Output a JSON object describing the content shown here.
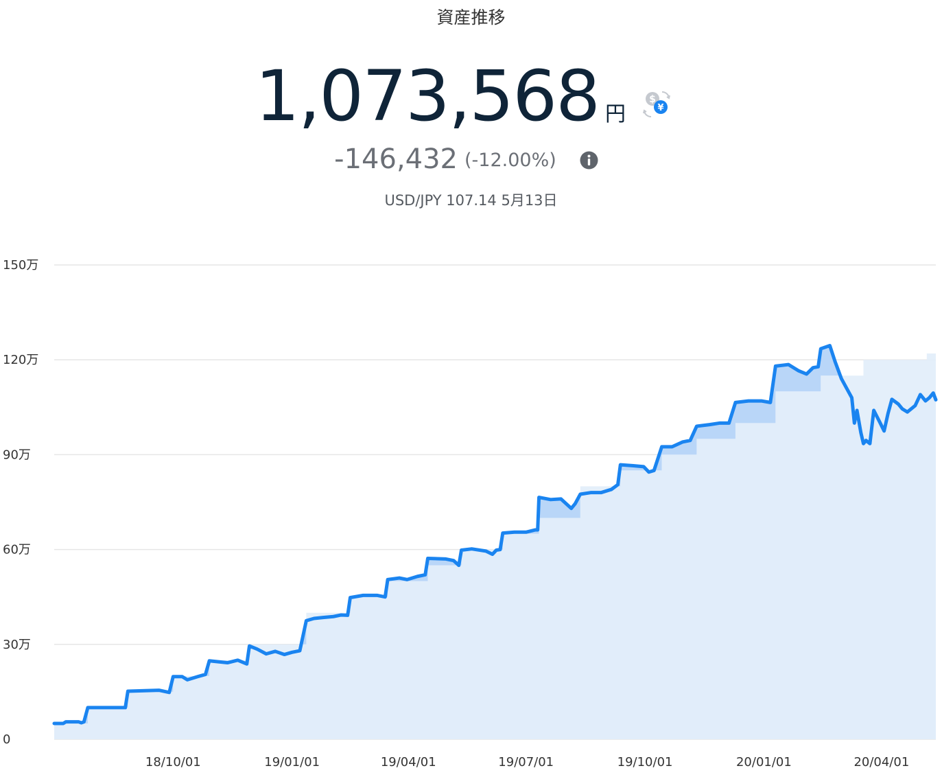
{
  "header": {
    "title": "資産推移",
    "total_value": "1,073,568",
    "unit": "円",
    "change": "-146,432",
    "change_pct": "(-12.00%)",
    "fx_rate": "USD/JPY 107.14 5月13日"
  },
  "icons": {
    "currency_switch": "currency-switch-icon",
    "info": "info-icon"
  },
  "colors": {
    "line": "#1a84f0",
    "area": "#e1edfa",
    "cost_area": "#b9d6f8",
    "grid": "#e6e6e6"
  },
  "chart_data": {
    "type": "area",
    "title": "",
    "xlabel": "",
    "ylabel": "",
    "ylim": [
      0,
      1500000
    ],
    "y_ticks": [
      {
        "value": 0,
        "label": "0"
      },
      {
        "value": 300000,
        "label": "30万"
      },
      {
        "value": 600000,
        "label": "60万"
      },
      {
        "value": 900000,
        "label": "90万"
      },
      {
        "value": 1200000,
        "label": "120万"
      },
      {
        "value": 1500000,
        "label": "150万"
      }
    ],
    "xlim": [
      "2018-07-01",
      "2020-05-13"
    ],
    "x_ticks": [
      {
        "date": "2018-10-01",
        "label": "18/10/01"
      },
      {
        "date": "2019-01-01",
        "label": "19/01/01"
      },
      {
        "date": "2019-04-01",
        "label": "19/04/01"
      },
      {
        "date": "2019-07-01",
        "label": "19/07/01"
      },
      {
        "date": "2019-10-01",
        "label": "19/10/01"
      },
      {
        "date": "2020-01-01",
        "label": "20/01/01"
      },
      {
        "date": "2020-04-01",
        "label": "20/04/01"
      }
    ],
    "grid": true,
    "series": [
      {
        "points": [
          [
            "2018-07-01",
            50000
          ],
          [
            "2018-07-08",
            50000
          ],
          [
            "2018-07-10",
            55000
          ],
          [
            "2018-07-20",
            55000
          ],
          [
            "2018-07-22",
            52000
          ],
          [
            "2018-07-24",
            55000
          ],
          [
            "2018-07-27",
            100000
          ],
          [
            "2018-08-25",
            100000
          ],
          [
            "2018-08-27",
            152000
          ],
          [
            "2018-09-20",
            155000
          ],
          [
            "2018-09-28",
            148000
          ],
          [
            "2018-10-01",
            198000
          ],
          [
            "2018-10-08",
            198000
          ],
          [
            "2018-10-12",
            188000
          ],
          [
            "2018-10-20",
            198000
          ],
          [
            "2018-10-26",
            205000
          ],
          [
            "2018-10-29",
            248000
          ],
          [
            "2018-11-05",
            245000
          ],
          [
            "2018-11-12",
            242000
          ],
          [
            "2018-11-20",
            250000
          ],
          [
            "2018-11-27",
            238000
          ],
          [
            "2018-11-29",
            295000
          ],
          [
            "2018-12-05",
            285000
          ],
          [
            "2018-12-12",
            270000
          ],
          [
            "2018-12-19",
            278000
          ],
          [
            "2018-12-26",
            268000
          ],
          [
            "2019-01-01",
            275000
          ],
          [
            "2019-01-07",
            280000
          ],
          [
            "2019-01-12",
            375000
          ],
          [
            "2019-01-18",
            382000
          ],
          [
            "2019-01-25",
            385000
          ],
          [
            "2019-02-02",
            388000
          ],
          [
            "2019-02-08",
            393000
          ],
          [
            "2019-02-13",
            392000
          ],
          [
            "2019-02-15",
            448000
          ],
          [
            "2019-02-25",
            455000
          ],
          [
            "2019-03-08",
            455000
          ],
          [
            "2019-03-14",
            450000
          ],
          [
            "2019-03-16",
            505000
          ],
          [
            "2019-03-25",
            510000
          ],
          [
            "2019-03-31",
            505000
          ],
          [
            "2019-04-08",
            515000
          ],
          [
            "2019-04-14",
            520000
          ],
          [
            "2019-04-16",
            572000
          ],
          [
            "2019-04-30",
            570000
          ],
          [
            "2019-05-06",
            565000
          ],
          [
            "2019-05-10",
            550000
          ],
          [
            "2019-05-12",
            598000
          ],
          [
            "2019-05-20",
            602000
          ],
          [
            "2019-05-31",
            595000
          ],
          [
            "2019-06-05",
            585000
          ],
          [
            "2019-06-08",
            598000
          ],
          [
            "2019-06-11",
            600000
          ],
          [
            "2019-06-13",
            652000
          ],
          [
            "2019-06-22",
            655000
          ],
          [
            "2019-07-01",
            655000
          ],
          [
            "2019-07-08",
            662000
          ],
          [
            "2019-07-10",
            662000
          ],
          [
            "2019-07-11",
            765000
          ],
          [
            "2019-07-20",
            758000
          ],
          [
            "2019-07-28",
            760000
          ],
          [
            "2019-08-05",
            730000
          ],
          [
            "2019-08-08",
            745000
          ],
          [
            "2019-08-12",
            775000
          ],
          [
            "2019-08-20",
            780000
          ],
          [
            "2019-08-28",
            780000
          ],
          [
            "2019-09-05",
            790000
          ],
          [
            "2019-09-10",
            805000
          ],
          [
            "2019-09-12",
            868000
          ],
          [
            "2019-09-22",
            865000
          ],
          [
            "2019-09-30",
            862000
          ],
          [
            "2019-10-04",
            845000
          ],
          [
            "2019-10-08",
            850000
          ],
          [
            "2019-10-14",
            925000
          ],
          [
            "2019-10-22",
            925000
          ],
          [
            "2019-10-30",
            940000
          ],
          [
            "2019-11-05",
            945000
          ],
          [
            "2019-11-10",
            990000
          ],
          [
            "2019-11-20",
            995000
          ],
          [
            "2019-11-28",
            1000000
          ],
          [
            "2019-12-05",
            1000000
          ],
          [
            "2019-12-10",
            1065000
          ],
          [
            "2019-12-20",
            1070000
          ],
          [
            "2019-12-30",
            1070000
          ],
          [
            "2020-01-06",
            1065000
          ],
          [
            "2020-01-10",
            1180000
          ],
          [
            "2020-01-20",
            1185000
          ],
          [
            "2020-01-28",
            1165000
          ],
          [
            "2020-02-03",
            1155000
          ],
          [
            "2020-02-08",
            1175000
          ],
          [
            "2020-02-12",
            1178000
          ],
          [
            "2020-02-14",
            1235000
          ],
          [
            "2020-02-21",
            1245000
          ],
          [
            "2020-02-25",
            1195000
          ],
          [
            "2020-03-01",
            1140000
          ],
          [
            "2020-03-05",
            1110000
          ],
          [
            "2020-03-09",
            1080000
          ],
          [
            "2020-03-11",
            1000000
          ],
          [
            "2020-03-13",
            1040000
          ],
          [
            "2020-03-16",
            970000
          ],
          [
            "2020-03-18",
            935000
          ],
          [
            "2020-03-20",
            945000
          ],
          [
            "2020-03-23",
            935000
          ],
          [
            "2020-03-26",
            1040000
          ],
          [
            "2020-03-31",
            1000000
          ],
          [
            "2020-04-03",
            975000
          ],
          [
            "2020-04-06",
            1030000
          ],
          [
            "2020-04-09",
            1075000
          ],
          [
            "2020-04-14",
            1060000
          ],
          [
            "2020-04-17",
            1045000
          ],
          [
            "2020-04-21",
            1035000
          ],
          [
            "2020-04-27",
            1055000
          ],
          [
            "2020-05-01",
            1090000
          ],
          [
            "2020-05-05",
            1070000
          ],
          [
            "2020-05-08",
            1080000
          ],
          [
            "2020-05-11",
            1095000
          ],
          [
            "2020-05-13",
            1073568
          ]
        ]
      },
      {
        "points": [
          [
            "2018-07-01",
            50000
          ],
          [
            "2018-07-27",
            100000
          ],
          [
            "2018-08-27",
            150000
          ],
          [
            "2018-10-01",
            200000
          ],
          [
            "2018-10-29",
            250000
          ],
          [
            "2018-11-29",
            300000
          ],
          [
            "2019-01-12",
            400000
          ],
          [
            "2019-02-15",
            450000
          ],
          [
            "2019-03-16",
            500000
          ],
          [
            "2019-04-16",
            550000
          ],
          [
            "2019-05-12",
            600000
          ],
          [
            "2019-06-13",
            650000
          ],
          [
            "2019-07-11",
            700000
          ],
          [
            "2019-08-12",
            800000
          ],
          [
            "2019-09-12",
            850000
          ],
          [
            "2019-10-14",
            900000
          ],
          [
            "2019-11-10",
            950000
          ],
          [
            "2019-12-10",
            1000000
          ],
          [
            "2020-01-10",
            1100000
          ],
          [
            "2020-02-14",
            1150000
          ],
          [
            "2020-03-18",
            1200000
          ],
          [
            "2020-05-06",
            1220000
          ],
          [
            "2020-05-13",
            1220000
          ]
        ]
      }
    ]
  }
}
